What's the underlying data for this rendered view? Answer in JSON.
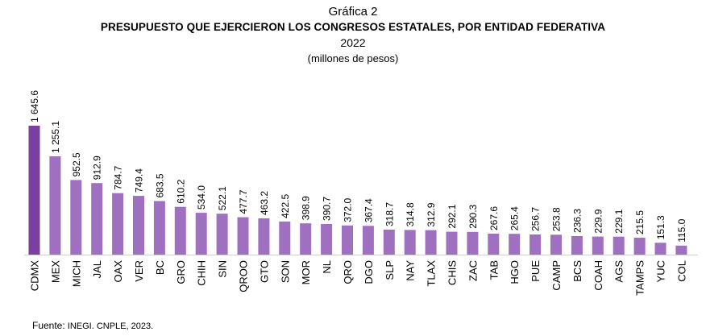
{
  "header": {
    "label": "Gráfica 2",
    "title": "PRESUPUESTO QUE EJERCIERON LOS CONGRESOS ESTATALES, POR ENTIDAD FEDERATIVA",
    "year": "2022",
    "units": "(millones de pesos)"
  },
  "footer": {
    "source_label": "Fuente:",
    "source_text": " INEGI. CNPLE, 2023."
  },
  "colors": {
    "highlight": "#7b3f9e",
    "bar": "#a070c0"
  },
  "chart_data": {
    "type": "bar",
    "title": "PRESUPUESTO QUE EJERCIERON LOS CONGRESOS ESTATALES, POR ENTIDAD FEDERATIVA",
    "subtitle": "2022",
    "ylabel": "",
    "xlabel": "",
    "grid": false,
    "ylim": [
      0,
      1700
    ],
    "categories": [
      "CDMX",
      "MEX",
      "MICH",
      "JAL",
      "OAX",
      "VER",
      "BC",
      "GRO",
      "CHIH",
      "SIN",
      "QROO",
      "GTO",
      "SON",
      "MOR",
      "NL",
      "QRO",
      "DGO",
      "SLP",
      "NAY",
      "TLAX",
      "CHIS",
      "ZAC",
      "TAB",
      "HGO",
      "PUE",
      "CAMP",
      "BCS",
      "COAH",
      "AGS",
      "TAMPS",
      "YUC",
      "COL"
    ],
    "values": [
      1645.6,
      1255.1,
      952.5,
      912.9,
      784.7,
      749.4,
      683.5,
      610.2,
      534.0,
      522.1,
      477.7,
      463.2,
      422.5,
      398.9,
      390.7,
      372.0,
      367.4,
      318.7,
      314.8,
      312.9,
      292.1,
      290.3,
      267.6,
      265.4,
      256.7,
      253.8,
      236.3,
      229.9,
      229.1,
      215.5,
      151.3,
      115.0
    ],
    "value_labels": [
      "1 645.6",
      "1 255.1",
      "952.5",
      "912.9",
      "784.7",
      "749.4",
      "683.5",
      "610.2",
      "534.0",
      "522.1",
      "477.7",
      "463.2",
      "422.5",
      "398.9",
      "390.7",
      "372.0",
      "367.4",
      "318.7",
      "314.8",
      "312.9",
      "292.1",
      "290.3",
      "267.6",
      "265.4",
      "256.7",
      "253.8",
      "236.3",
      "229.9",
      "229.1",
      "215.5",
      "151.3",
      "115.0"
    ]
  }
}
